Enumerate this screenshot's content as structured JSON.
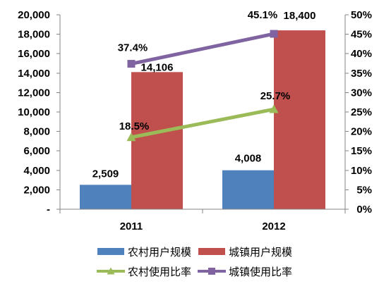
{
  "chart_data": {
    "type": "bar",
    "categories": [
      "2011",
      "2012"
    ],
    "series": [
      {
        "name": "农村用户规模",
        "type": "bar",
        "axis": "left",
        "values": [
          2509,
          4008
        ],
        "data_labels": [
          "2,509",
          "4,008"
        ],
        "color": "#4F81BD"
      },
      {
        "name": "城镇用户规模",
        "type": "bar",
        "axis": "left",
        "values": [
          14106,
          18400
        ],
        "data_labels": [
          "14,106",
          "18,400"
        ],
        "color": "#C0504D"
      },
      {
        "name": "农村使用比率",
        "type": "line",
        "axis": "right",
        "marker": "triangle",
        "values": [
          18.5,
          25.7
        ],
        "data_labels": [
          "18.5%",
          "25.7%"
        ],
        "color": "#9BBB59"
      },
      {
        "name": "城镇使用比率",
        "type": "line",
        "axis": "right",
        "marker": "square",
        "values": [
          37.4,
          45.1
        ],
        "data_labels": [
          "37.4%",
          "45.1%"
        ],
        "color": "#8064A2"
      }
    ],
    "y_left": {
      "range": [
        0,
        20000
      ],
      "ticks": [
        0,
        2000,
        4000,
        6000,
        8000,
        10000,
        12000,
        14000,
        16000,
        18000,
        20000
      ],
      "tick_labels": [
        "-",
        "2,000",
        "4,000",
        "6,000",
        "8,000",
        "10,000",
        "12,000",
        "14,000",
        "16,000",
        "18,000",
        "20,000"
      ]
    },
    "y_right": {
      "range": [
        0,
        50
      ],
      "ticks": [
        0,
        5,
        10,
        15,
        20,
        25,
        30,
        35,
        40,
        45,
        50
      ],
      "tick_labels": [
        "0%",
        "5%",
        "10%",
        "15%",
        "20%",
        "25%",
        "30%",
        "35%",
        "40%",
        "45%",
        "50%"
      ]
    },
    "grid": false,
    "legend": "bottom",
    "axis_color": "#868686"
  }
}
